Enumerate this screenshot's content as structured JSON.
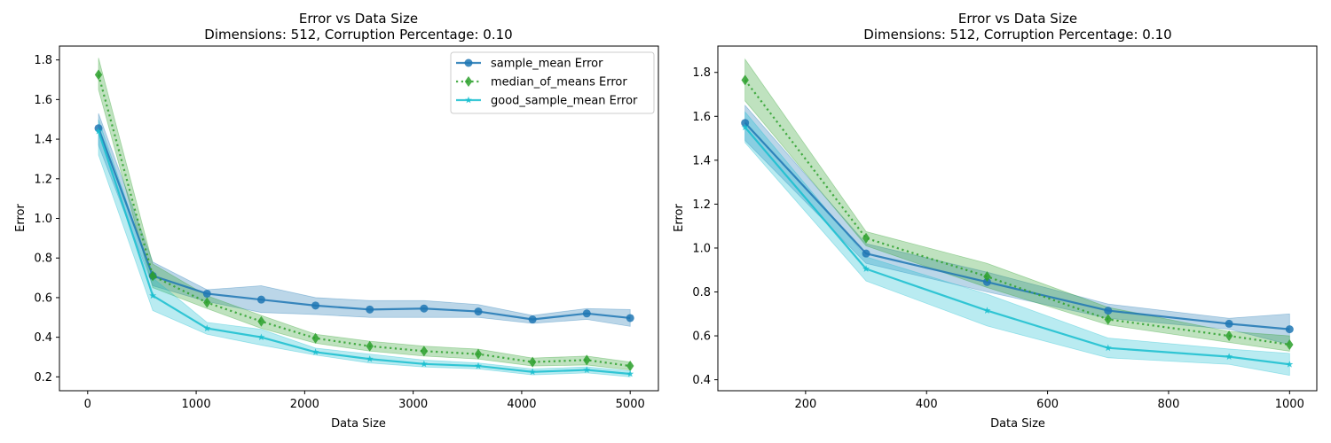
{
  "chart_data": [
    {
      "type": "line",
      "title_line1": "Error vs Data Size",
      "title_line2": "Dimensions: 512, Corruption Percentage: 0.10",
      "xlabel": "Data Size",
      "ylabel": "Error",
      "xlim": [
        -260,
        5260
      ],
      "ylim": [
        0.13,
        1.87
      ],
      "xticks": [
        0,
        1000,
        2000,
        3000,
        4000,
        5000
      ],
      "yticks": [
        0.2,
        0.4,
        0.6,
        0.8,
        1.0,
        1.2,
        1.4,
        1.6,
        1.8
      ],
      "legend": "top-right",
      "x": [
        100,
        600,
        1100,
        1600,
        2100,
        2600,
        3100,
        3600,
        4100,
        4600,
        5000
      ],
      "series": [
        {
          "name": "sample_mean Error",
          "color": "#1f77b4",
          "marker": "circle",
          "dash": "solid",
          "values": [
            1.455,
            0.71,
            0.62,
            0.59,
            0.56,
            0.54,
            0.545,
            0.53,
            0.49,
            0.52,
            0.497
          ],
          "lower": [
            1.37,
            0.66,
            0.58,
            0.525,
            0.515,
            0.5,
            0.5,
            0.5,
            0.47,
            0.49,
            0.455
          ],
          "upper": [
            1.53,
            0.78,
            0.64,
            0.66,
            0.6,
            0.585,
            0.585,
            0.565,
            0.51,
            0.545,
            0.54
          ]
        },
        {
          "name": "median_of_means Error",
          "color": "#2ca02c",
          "marker": "diamond",
          "dash": "dotted",
          "values": [
            1.725,
            0.71,
            0.575,
            0.48,
            0.395,
            0.355,
            0.33,
            0.315,
            0.275,
            0.285,
            0.255
          ],
          "lower": [
            1.65,
            0.65,
            0.545,
            0.445,
            0.37,
            0.33,
            0.305,
            0.29,
            0.255,
            0.26,
            0.235
          ],
          "upper": [
            1.81,
            0.77,
            0.61,
            0.51,
            0.415,
            0.38,
            0.355,
            0.34,
            0.295,
            0.305,
            0.275
          ]
        },
        {
          "name": "good_sample_mean Error",
          "color": "#17becf",
          "marker": "star",
          "dash": "solid",
          "values": [
            1.44,
            0.61,
            0.445,
            0.4,
            0.325,
            0.29,
            0.265,
            0.255,
            0.225,
            0.235,
            0.215
          ],
          "lower": [
            1.32,
            0.535,
            0.415,
            0.36,
            0.31,
            0.27,
            0.25,
            0.24,
            0.21,
            0.22,
            0.2
          ],
          "upper": [
            1.5,
            0.7,
            0.475,
            0.44,
            0.345,
            0.315,
            0.285,
            0.27,
            0.24,
            0.25,
            0.23
          ]
        }
      ]
    },
    {
      "type": "line",
      "title_line1": "Error vs Data Size",
      "title_line2": "Dimensions: 512, Corruption Percentage: 0.10",
      "xlabel": "Data Size",
      "ylabel": "Error",
      "xlim": [
        55,
        1045
      ],
      "ylim": [
        0.35,
        1.92
      ],
      "xticks": [
        200,
        400,
        600,
        800,
        1000
      ],
      "yticks": [
        0.4,
        0.6,
        0.8,
        1.0,
        1.2,
        1.4,
        1.6,
        1.8
      ],
      "legend": "none",
      "x": [
        100,
        300,
        500,
        700,
        900,
        1000
      ],
      "series": [
        {
          "name": "sample_mean Error",
          "color": "#1f77b4",
          "marker": "circle",
          "dash": "solid",
          "values": [
            1.57,
            0.975,
            0.845,
            0.715,
            0.655,
            0.63
          ],
          "lower": [
            1.49,
            0.93,
            0.8,
            0.68,
            0.63,
            0.56
          ],
          "upper": [
            1.65,
            1.02,
            0.89,
            0.745,
            0.68,
            0.7
          ]
        },
        {
          "name": "median_of_means Error",
          "color": "#2ca02c",
          "marker": "diamond",
          "dash": "dotted",
          "values": [
            1.765,
            1.045,
            0.87,
            0.675,
            0.6,
            0.56
          ],
          "lower": [
            1.67,
            1.01,
            0.82,
            0.65,
            0.57,
            0.53
          ],
          "upper": [
            1.86,
            1.075,
            0.93,
            0.73,
            0.62,
            0.6
          ]
        },
        {
          "name": "good_sample_mean Error",
          "color": "#17becf",
          "marker": "star",
          "dash": "solid",
          "values": [
            1.55,
            0.905,
            0.715,
            0.545,
            0.505,
            0.47
          ],
          "lower": [
            1.48,
            0.85,
            0.645,
            0.5,
            0.47,
            0.42
          ],
          "upper": [
            1.62,
            0.96,
            0.79,
            0.59,
            0.54,
            0.52
          ]
        }
      ]
    }
  ]
}
